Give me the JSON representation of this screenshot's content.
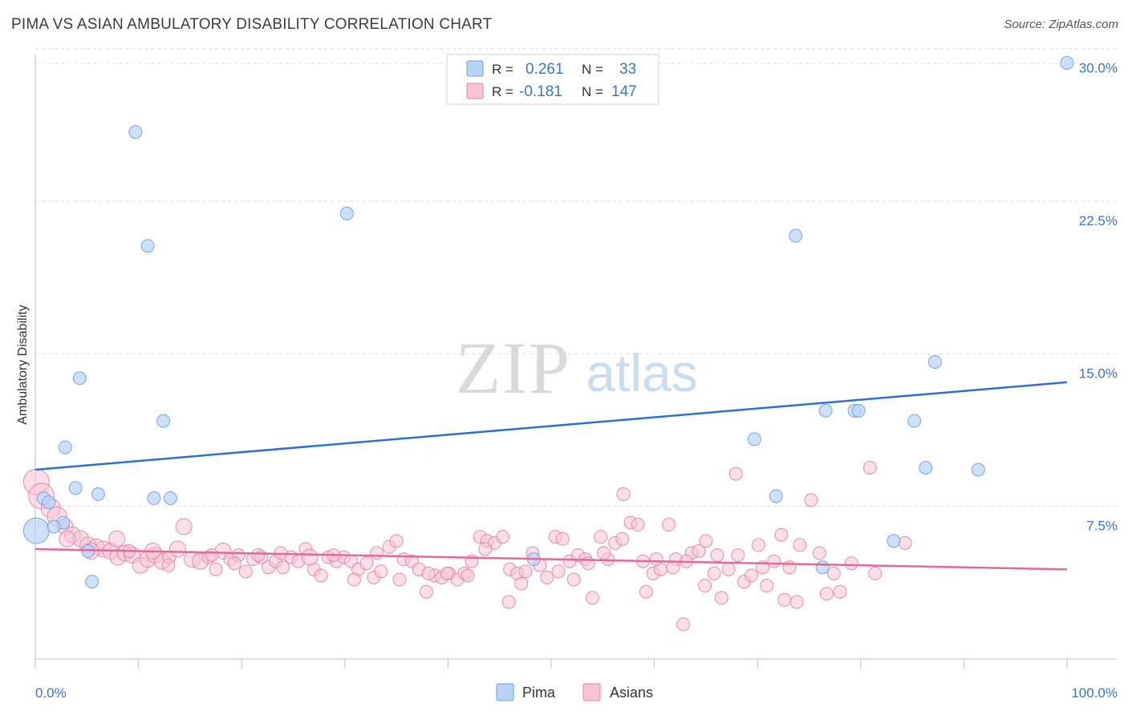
{
  "header": {
    "title": "PIMA VS ASIAN AMBULATORY DISABILITY CORRELATION CHART",
    "source": "Source: ZipAtlas.com"
  },
  "watermark": {
    "zip": "ZIP",
    "atlas": "atlas"
  },
  "stats": [
    {
      "r_label": "R =",
      "r": "0.261",
      "n_label": "N =",
      "n": "33",
      "color": "#6b9fe0",
      "fill": "#b9d3f5"
    },
    {
      "r_label": "R =",
      "r": "-0.181",
      "n_label": "N =",
      "n": "147",
      "color": "#e67fa3",
      "fill": "#f7c4d5"
    }
  ],
  "chart_data": {
    "type": "scatter",
    "title": "PIMA VS ASIAN AMBULATORY DISABILITY CORRELATION CHART",
    "xlabel": "",
    "ylabel": "Ambulatory Disability",
    "xlim": [
      0,
      100
    ],
    "ylim": [
      0,
      30.5
    ],
    "x_tick_labels": [
      "0.0%",
      "100.0%"
    ],
    "y_ticks": [
      7.5,
      15.0,
      22.5,
      30.0
    ],
    "y_tick_labels": [
      "7.5%",
      "15.0%",
      "22.5%",
      "30.0%"
    ],
    "grid": true,
    "legend_position": "bottom-center",
    "series": [
      {
        "name": "Pima",
        "color": "#6b9fe0",
        "fill": "#b9d3f5",
        "trend": [
          [
            0,
            9.3
          ],
          [
            100,
            13.6
          ]
        ],
        "points": [
          [
            0.1,
            6.3,
            16
          ],
          [
            0.8,
            7.9,
            8
          ],
          [
            1.3,
            7.7,
            8
          ],
          [
            2.7,
            6.7,
            8
          ],
          [
            1.8,
            6.5,
            8
          ],
          [
            2.9,
            10.4,
            8
          ],
          [
            3.9,
            8.4,
            8
          ],
          [
            4.3,
            13.8,
            8
          ],
          [
            5.1,
            5.3,
            8
          ],
          [
            5.5,
            3.8,
            8
          ],
          [
            6.1,
            8.1,
            8
          ],
          [
            9.7,
            25.9,
            8
          ],
          [
            10.9,
            20.3,
            8
          ],
          [
            11.5,
            7.9,
            8
          ],
          [
            12.4,
            11.7,
            8
          ],
          [
            13.1,
            7.9,
            8
          ],
          [
            30.2,
            21.9,
            8
          ],
          [
            48.3,
            4.9,
            8
          ],
          [
            69.7,
            10.8,
            8
          ],
          [
            71.8,
            8.0,
            8
          ],
          [
            73.7,
            20.8,
            8
          ],
          [
            76.6,
            12.2,
            8
          ],
          [
            79.4,
            12.2,
            8
          ],
          [
            79.8,
            12.2,
            8
          ],
          [
            83.2,
            5.8,
            8
          ],
          [
            76.3,
            4.5,
            8
          ],
          [
            85.2,
            11.7,
            8
          ],
          [
            86.3,
            9.4,
            8
          ],
          [
            91.4,
            9.3,
            8
          ],
          [
            87.2,
            14.6,
            8
          ],
          [
            100.0,
            29.3,
            8
          ]
        ]
      },
      {
        "name": "Asians",
        "color": "#e67fa3",
        "fill": "#f7c4d5",
        "trend": [
          [
            0,
            5.4
          ],
          [
            100,
            4.4
          ]
        ],
        "points": [
          [
            0.1,
            8.7,
            16
          ],
          [
            0.6,
            8.0,
            16
          ],
          [
            1.5,
            7.4,
            12
          ],
          [
            2.1,
            7.0,
            12
          ],
          [
            2.9,
            6.5,
            10
          ],
          [
            3.6,
            6.1,
            10
          ],
          [
            4.4,
            5.9,
            10
          ],
          [
            5.1,
            5.6,
            10
          ],
          [
            5.9,
            5.5,
            10
          ],
          [
            6.6,
            5.4,
            10
          ],
          [
            7.3,
            5.3,
            10
          ],
          [
            8.0,
            5.0,
            10
          ],
          [
            8.7,
            5.2,
            10
          ],
          [
            9.4,
            5.1,
            10
          ],
          [
            10.2,
            4.6,
            10
          ],
          [
            10.9,
            4.9,
            10
          ],
          [
            11.6,
            5.1,
            10
          ],
          [
            12.3,
            4.8,
            10
          ],
          [
            13.0,
            5.0,
            8
          ],
          [
            13.8,
            5.4,
            10
          ],
          [
            14.4,
            6.5,
            10
          ],
          [
            15.2,
            4.9,
            10
          ],
          [
            16.0,
            4.8,
            10
          ],
          [
            16.8,
            5.0,
            8
          ],
          [
            17.5,
            4.4,
            8
          ],
          [
            18.2,
            5.3,
            10
          ],
          [
            18.9,
            4.9,
            8
          ],
          [
            19.7,
            5.1,
            8
          ],
          [
            20.4,
            4.3,
            8
          ],
          [
            21.1,
            4.9,
            8
          ],
          [
            21.9,
            5.0,
            8
          ],
          [
            22.6,
            4.5,
            8
          ],
          [
            23.3,
            4.8,
            8
          ],
          [
            24.0,
            4.5,
            8
          ],
          [
            24.8,
            5.0,
            8
          ],
          [
            25.5,
            4.8,
            8
          ],
          [
            26.2,
            5.4,
            8
          ],
          [
            27.0,
            4.4,
            8
          ],
          [
            27.7,
            4.1,
            8
          ],
          [
            28.4,
            5.0,
            8
          ],
          [
            29.2,
            4.8,
            8
          ],
          [
            29.9,
            5.0,
            8
          ],
          [
            30.6,
            4.8,
            8
          ],
          [
            31.3,
            4.4,
            8
          ],
          [
            32.1,
            4.7,
            8
          ],
          [
            32.8,
            4.0,
            8
          ],
          [
            33.5,
            4.3,
            8
          ],
          [
            34.3,
            5.5,
            8
          ],
          [
            35.0,
            5.8,
            8
          ],
          [
            35.7,
            4.9,
            8
          ],
          [
            36.5,
            4.8,
            8
          ],
          [
            37.2,
            4.4,
            8
          ],
          [
            37.9,
            3.3,
            8
          ],
          [
            38.7,
            4.1,
            8
          ],
          [
            39.4,
            4.0,
            8
          ],
          [
            40.1,
            4.2,
            8
          ],
          [
            40.9,
            3.9,
            8
          ],
          [
            41.6,
            4.2,
            8
          ],
          [
            42.3,
            4.8,
            8
          ],
          [
            43.1,
            6.0,
            8
          ],
          [
            43.8,
            5.8,
            8
          ],
          [
            44.5,
            5.7,
            8
          ],
          [
            45.3,
            6.0,
            8
          ],
          [
            46.0,
            4.4,
            8
          ],
          [
            46.7,
            4.2,
            8
          ],
          [
            47.5,
            4.3,
            8
          ],
          [
            48.2,
            5.2,
            8
          ],
          [
            48.9,
            4.6,
            8
          ],
          [
            49.6,
            4.0,
            8
          ],
          [
            50.4,
            6.0,
            8
          ],
          [
            51.1,
            5.9,
            8
          ],
          [
            51.8,
            4.8,
            8
          ],
          [
            52.6,
            5.1,
            8
          ],
          [
            53.3,
            4.9,
            8
          ],
          [
            54.0,
            3.0,
            8
          ],
          [
            54.8,
            6.0,
            8
          ],
          [
            55.5,
            4.9,
            8
          ],
          [
            56.2,
            5.7,
            8
          ],
          [
            57.0,
            8.1,
            8
          ],
          [
            57.7,
            6.7,
            8
          ],
          [
            58.4,
            6.6,
            8
          ],
          [
            59.2,
            3.3,
            8
          ],
          [
            59.9,
            4.2,
            8
          ],
          [
            60.6,
            4.4,
            8
          ],
          [
            61.4,
            6.6,
            8
          ],
          [
            62.1,
            4.9,
            8
          ],
          [
            62.8,
            1.7,
            8
          ],
          [
            63.6,
            5.2,
            8
          ],
          [
            64.3,
            5.3,
            8
          ],
          [
            65.0,
            5.8,
            8
          ],
          [
            65.8,
            4.2,
            8
          ],
          [
            66.5,
            3.0,
            8
          ],
          [
            67.2,
            4.4,
            8
          ],
          [
            67.9,
            9.1,
            8
          ],
          [
            68.7,
            3.8,
            8
          ],
          [
            69.4,
            4.1,
            8
          ],
          [
            70.1,
            5.6,
            8
          ],
          [
            70.9,
            3.6,
            8
          ],
          [
            71.6,
            4.8,
            8
          ],
          [
            72.3,
            6.1,
            8
          ],
          [
            73.1,
            4.5,
            8
          ],
          [
            73.8,
            2.8,
            8
          ],
          [
            75.2,
            7.8,
            8
          ],
          [
            76.7,
            3.2,
            8
          ],
          [
            77.4,
            4.2,
            8
          ],
          [
            80.9,
            9.4,
            8
          ],
          [
            84.3,
            5.7,
            8
          ],
          [
            3.1,
            5.9,
            10
          ],
          [
            5.4,
            5.3,
            10
          ],
          [
            7.9,
            5.9,
            10
          ],
          [
            9.1,
            5.3,
            8
          ],
          [
            11.4,
            5.3,
            10
          ],
          [
            12.9,
            4.6,
            8
          ],
          [
            17.1,
            5.1,
            8
          ],
          [
            19.3,
            4.7,
            8
          ],
          [
            21.6,
            5.1,
            8
          ],
          [
            23.8,
            5.2,
            8
          ],
          [
            26.6,
            5.0,
            10
          ],
          [
            28.9,
            5.1,
            8
          ],
          [
            30.9,
            3.9,
            8
          ],
          [
            33.1,
            5.2,
            8
          ],
          [
            35.3,
            3.9,
            8
          ],
          [
            38.1,
            4.2,
            8
          ],
          [
            39.9,
            4.2,
            8
          ],
          [
            41.9,
            4.1,
            8
          ],
          [
            43.6,
            5.4,
            8
          ],
          [
            45.9,
            2.8,
            8
          ],
          [
            47.1,
            3.7,
            8
          ],
          [
            50.7,
            4.3,
            8
          ],
          [
            52.2,
            3.9,
            8
          ],
          [
            53.6,
            4.7,
            8
          ],
          [
            55.1,
            5.2,
            8
          ],
          [
            56.9,
            5.9,
            8
          ],
          [
            58.9,
            4.8,
            8
          ],
          [
            60.2,
            4.9,
            8
          ],
          [
            61.8,
            4.5,
            8
          ],
          [
            63.1,
            4.8,
            8
          ],
          [
            64.9,
            3.6,
            8
          ],
          [
            66.1,
            5.1,
            8
          ],
          [
            68.1,
            5.1,
            8
          ],
          [
            70.5,
            4.5,
            8
          ],
          [
            72.6,
            2.9,
            8
          ],
          [
            74.1,
            5.6,
            8
          ],
          [
            76.0,
            5.2,
            8
          ],
          [
            78.0,
            3.3,
            8
          ],
          [
            79.1,
            4.7,
            8
          ],
          [
            81.4,
            4.2,
            8
          ]
        ]
      }
    ]
  }
}
